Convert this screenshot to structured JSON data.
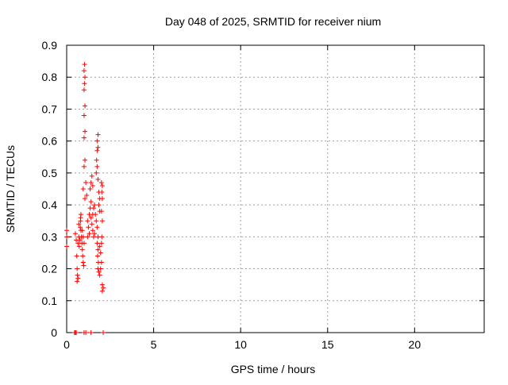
{
  "chart_data": {
    "type": "scatter",
    "title": "Day 048 of 2025, SRMTID for receiver nium",
    "xlabel": "GPS time / hours",
    "ylabel": "SRMTID / TECUs",
    "xlim": [
      0,
      24
    ],
    "ylim": [
      0,
      0.9
    ],
    "xticks": [
      0,
      5,
      10,
      15,
      20
    ],
    "xtick_labels": [
      "0",
      "5",
      "10",
      "15",
      "20"
    ],
    "yticks": [
      0,
      0.1,
      0.2,
      0.3,
      0.4,
      0.5,
      0.6,
      0.7,
      0.8,
      0.9
    ],
    "ytick_labels": [
      "0",
      "0.1",
      "0.2",
      "0.3",
      "0.4",
      "0.5",
      "0.6",
      "0.7",
      "0.8",
      "0.9"
    ],
    "grid": true,
    "marker": "+",
    "color": "#ff0000",
    "series": [
      {
        "name": "SRMTID",
        "points": [
          [
            0.0,
            0.32
          ],
          [
            0.0,
            0.3
          ],
          [
            0.0,
            0.27
          ],
          [
            0.45,
            0.0
          ],
          [
            0.5,
            0.0
          ],
          [
            0.55,
            0.0
          ],
          [
            1.0,
            0.0
          ],
          [
            1.1,
            0.0
          ],
          [
            1.4,
            0.0
          ],
          [
            2.1,
            0.0
          ],
          [
            0.5,
            0.31
          ],
          [
            0.55,
            0.29
          ],
          [
            0.58,
            0.24
          ],
          [
            0.6,
            0.2
          ],
          [
            0.62,
            0.18
          ],
          [
            0.65,
            0.17
          ],
          [
            0.6,
            0.16
          ],
          [
            0.65,
            0.28
          ],
          [
            0.7,
            0.3
          ],
          [
            0.72,
            0.27
          ],
          [
            0.75,
            0.29
          ],
          [
            0.7,
            0.34
          ],
          [
            0.78,
            0.33
          ],
          [
            0.8,
            0.36
          ],
          [
            0.82,
            0.37
          ],
          [
            0.8,
            0.35
          ],
          [
            0.85,
            0.3
          ],
          [
            0.82,
            0.32
          ],
          [
            0.88,
            0.28
          ],
          [
            0.9,
            0.26
          ],
          [
            0.92,
            0.24
          ],
          [
            0.95,
            0.22
          ],
          [
            0.98,
            0.21
          ],
          [
            0.9,
            0.32
          ],
          [
            0.95,
            0.3
          ],
          [
            1.0,
            0.28
          ],
          [
            0.95,
            0.45
          ],
          [
            1.0,
            0.52
          ],
          [
            1.05,
            0.54
          ],
          [
            1.0,
            0.61
          ],
          [
            1.05,
            0.63
          ],
          [
            1.0,
            0.68
          ],
          [
            1.05,
            0.71
          ],
          [
            1.0,
            0.76
          ],
          [
            1.02,
            0.78
          ],
          [
            1.05,
            0.8
          ],
          [
            1.0,
            0.82
          ],
          [
            1.03,
            0.84
          ],
          [
            1.05,
            0.42
          ],
          [
            1.1,
            0.47
          ],
          [
            1.15,
            0.43
          ],
          [
            1.2,
            0.35
          ],
          [
            1.25,
            0.33
          ],
          [
            1.3,
            0.31
          ],
          [
            1.2,
            0.3
          ],
          [
            1.3,
            0.37
          ],
          [
            1.35,
            0.39
          ],
          [
            1.4,
            0.41
          ],
          [
            1.35,
            0.45
          ],
          [
            1.4,
            0.47
          ],
          [
            1.45,
            0.49
          ],
          [
            1.5,
            0.46
          ],
          [
            1.4,
            0.36
          ],
          [
            1.45,
            0.34
          ],
          [
            1.5,
            0.32
          ],
          [
            1.55,
            0.3
          ],
          [
            1.6,
            0.31
          ],
          [
            1.5,
            0.37
          ],
          [
            1.55,
            0.39
          ],
          [
            1.6,
            0.4
          ],
          [
            1.65,
            0.37
          ],
          [
            1.7,
            0.35
          ],
          [
            1.75,
            0.33
          ],
          [
            1.8,
            0.3
          ],
          [
            1.7,
            0.5
          ],
          [
            1.75,
            0.52
          ],
          [
            1.72,
            0.54
          ],
          [
            1.75,
            0.57
          ],
          [
            1.8,
            0.58
          ],
          [
            1.75,
            0.6
          ],
          [
            1.8,
            0.62
          ],
          [
            1.8,
            0.48
          ],
          [
            1.85,
            0.44
          ],
          [
            1.9,
            0.42
          ],
          [
            1.85,
            0.4
          ],
          [
            1.9,
            0.38
          ],
          [
            1.75,
            0.28
          ],
          [
            1.8,
            0.26
          ],
          [
            1.78,
            0.24
          ],
          [
            1.82,
            0.22
          ],
          [
            1.8,
            0.2
          ],
          [
            1.85,
            0.19
          ],
          [
            1.9,
            0.18
          ],
          [
            1.95,
            0.2
          ],
          [
            2.0,
            0.22
          ],
          [
            2.0,
            0.28
          ],
          [
            2.02,
            0.3
          ],
          [
            2.05,
            0.35
          ],
          [
            2.0,
            0.38
          ],
          [
            2.05,
            0.42
          ],
          [
            2.02,
            0.44
          ],
          [
            2.05,
            0.46
          ],
          [
            2.0,
            0.47
          ],
          [
            2.05,
            0.15
          ],
          [
            2.1,
            0.14
          ],
          [
            2.05,
            0.13
          ],
          [
            1.95,
            0.25
          ],
          [
            1.9,
            0.27
          ]
        ]
      }
    ]
  }
}
